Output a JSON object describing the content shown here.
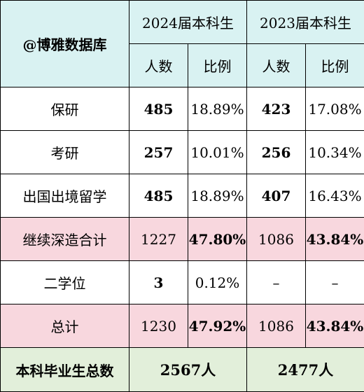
{
  "header": {
    "watermark": "@博雅数据库",
    "year_2024": "2024届本科生",
    "year_2023": "2023届本科生",
    "count_label": "人数",
    "ratio_label": "比例"
  },
  "rows": [
    {
      "label": "保研",
      "c2024": "485",
      "r2024": "18.89%",
      "c2023": "423",
      "r2023": "17.08%"
    },
    {
      "label": "考研",
      "c2024": "257",
      "r2024": "10.01%",
      "c2023": "256",
      "r2023": "10.34%"
    },
    {
      "label": "出国出境留学",
      "c2024": "485",
      "r2024": "18.89%",
      "c2023": "407",
      "r2023": "16.43%"
    },
    {
      "label": "继续深造合计",
      "c2024": "1227",
      "r2024": "47.80%",
      "c2023": "1086",
      "r2023": "43.84%"
    },
    {
      "label": "二学位",
      "c2024": "3",
      "r2024": "0.12%",
      "c2023": "–",
      "r2023": "–"
    },
    {
      "label": "总计",
      "c2024": "1230",
      "r2024": "47.92%",
      "c2023": "1086",
      "r2023": "43.84%"
    }
  ],
  "footer": {
    "label": "本科毕业生总数",
    "total_2024": "2567人",
    "total_2023": "2477人"
  },
  "colors": {
    "header_bg": "#d9f2f2",
    "highlight_row_bg": "#f8d7de",
    "footer_bg": "#e2efda",
    "accent_red": "#c00000",
    "number_blue": "#2e75b6"
  }
}
